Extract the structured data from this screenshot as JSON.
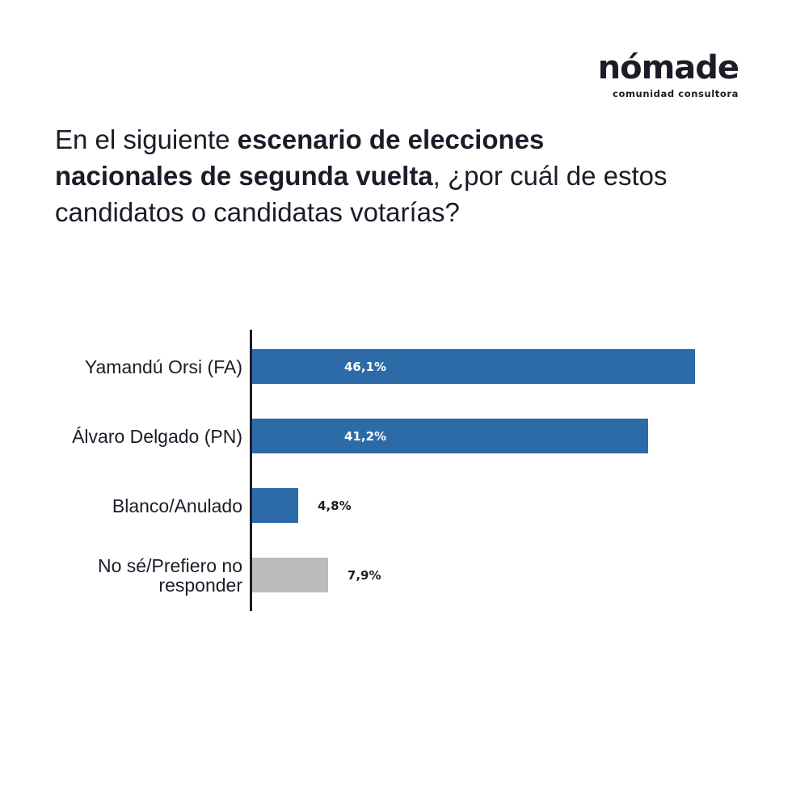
{
  "brand": {
    "name": "nómade",
    "tagline": "comunidad consultora"
  },
  "question": {
    "part1": "En el siguiente ",
    "bold": "escenario de elecciones nacionales de segunda vuelta",
    "part2": ", ¿por cuál de estos candidatos o candidatas votarías?"
  },
  "colors": {
    "blue": "#2d6aa8",
    "gray": "#bdbbbc",
    "text": "#1c1c28"
  },
  "chart_data": {
    "type": "bar",
    "orientation": "horizontal",
    "categories": [
      "Yamandú Orsi (FA)",
      "Álvaro Delgado (PN)",
      "Blanco/Anulado",
      "No sé/Prefiero no responder"
    ],
    "values": [
      46.1,
      41.2,
      4.8,
      7.9
    ],
    "value_labels": [
      "46,1%",
      "41,2%",
      "4,8%",
      "7,9%"
    ],
    "bar_colors": [
      "#2d6aa8",
      "#2d6aa8",
      "#2d6aa8",
      "#bdbbbc"
    ],
    "unit": "%"
  }
}
